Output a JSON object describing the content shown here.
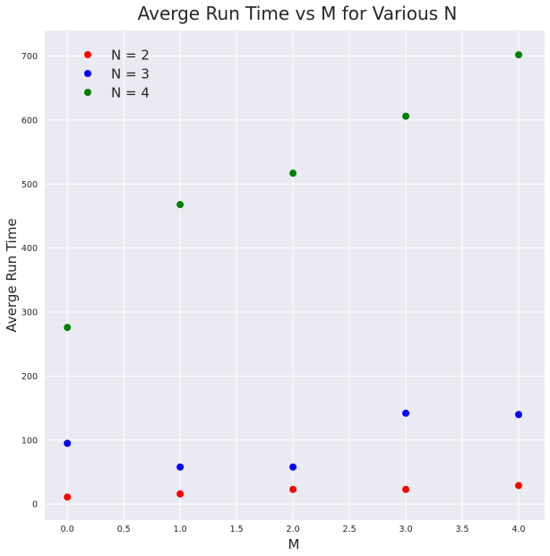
{
  "chart_data": {
    "type": "scatter",
    "title": "Averge Run Time vs M for Various N",
    "xlabel": "M",
    "ylabel": "Averge Run Time",
    "xlim": [
      -0.2,
      4.23
    ],
    "ylim": [
      -25,
      740
    ],
    "xticks": [
      "0.0",
      "0.5",
      "1.0",
      "1.5",
      "2.0",
      "2.5",
      "3.0",
      "3.5",
      "4.0"
    ],
    "yticks": [
      "0",
      "100",
      "200",
      "300",
      "400",
      "500",
      "600",
      "700"
    ],
    "grid": true,
    "legend_position": "top-left",
    "background": "#eaeaf2",
    "series": [
      {
        "name": "N = 2",
        "color": "#ff0000",
        "x": [
          0,
          1,
          2,
          3,
          4
        ],
        "y": [
          11,
          16,
          23,
          23,
          29
        ]
      },
      {
        "name": "N = 3",
        "color": "#0000ff",
        "x": [
          0,
          1,
          2,
          3,
          4
        ],
        "y": [
          95,
          58,
          58,
          142,
          140
        ]
      },
      {
        "name": "N = 4",
        "color": "#008000",
        "x": [
          0,
          1,
          2,
          3,
          4
        ],
        "y": [
          276,
          468,
          517,
          606,
          702
        ]
      }
    ]
  }
}
